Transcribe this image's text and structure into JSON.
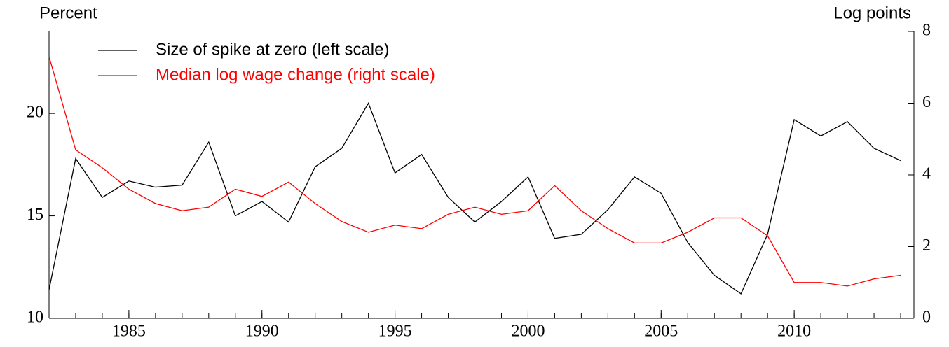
{
  "chart_data": {
    "type": "line",
    "y_label": "Percent",
    "y2_label": "Log points",
    "x": [
      1982,
      1983,
      1984,
      1985,
      1986,
      1987,
      1988,
      1989,
      1990,
      1991,
      1992,
      1993,
      1994,
      1995,
      1996,
      1997,
      1998,
      1999,
      2000,
      2001,
      2002,
      2003,
      2004,
      2005,
      2006,
      2007,
      2008,
      2009,
      2010,
      2011,
      2012,
      2013,
      2014
    ],
    "series": [
      {
        "name": "Size of spike at zero (left scale)",
        "color": "#000000",
        "values": [
          11.4,
          17.8,
          15.9,
          16.7,
          16.4,
          16.5,
          18.6,
          15.0,
          15.7,
          14.7,
          17.4,
          18.3,
          20.5,
          17.1,
          18.0,
          15.9,
          14.7,
          15.7,
          16.9,
          13.9,
          14.1,
          15.3,
          16.9,
          16.1,
          13.7,
          12.1,
          11.2,
          14.1,
          19.7,
          18.9,
          19.6,
          18.3,
          17.7
        ]
      },
      {
        "name": "Median log wage change (right scale)",
        "color": "#ff0000",
        "axis": "y2",
        "values": [
          7.3,
          4.7,
          4.2,
          3.6,
          3.2,
          3.0,
          3.1,
          3.6,
          3.4,
          3.8,
          3.2,
          2.7,
          2.4,
          2.6,
          2.5,
          2.9,
          3.1,
          2.9,
          3.0,
          3.7,
          3.0,
          2.5,
          2.1,
          2.1,
          2.4,
          2.8,
          2.8,
          2.3,
          1.0,
          1.0,
          0.9,
          1.1,
          1.2
        ]
      }
    ],
    "xlim": [
      1982,
      2014.5
    ],
    "xticks": [
      1985,
      1990,
      1995,
      2000,
      2005,
      2010
    ],
    "ylim": [
      10,
      24
    ],
    "yticks": [
      10,
      15,
      20
    ],
    "y2lim": [
      0,
      8
    ],
    "y2ticks": [
      0,
      2,
      4,
      6,
      8
    ]
  }
}
